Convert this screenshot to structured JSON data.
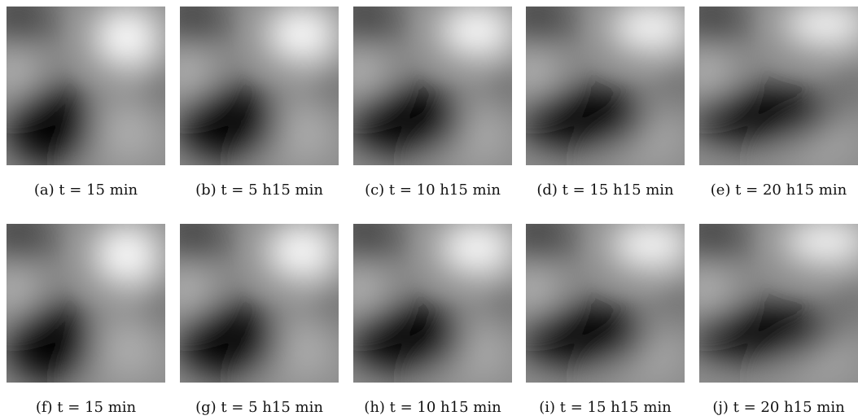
{
  "captions": [
    "(a) t = 15 min",
    "(b) t = 5 h15 min",
    "(c) t = 10 h15 min",
    "(d) t = 15 h15 min",
    "(e) t = 20 h15 min",
    "(f) t = 15 min",
    "(g) t = 5 h15 min",
    "(h) t = 10 h15 min",
    "(i) t = 15 h15 min",
    "(j) t = 20 h15 min"
  ]
}
